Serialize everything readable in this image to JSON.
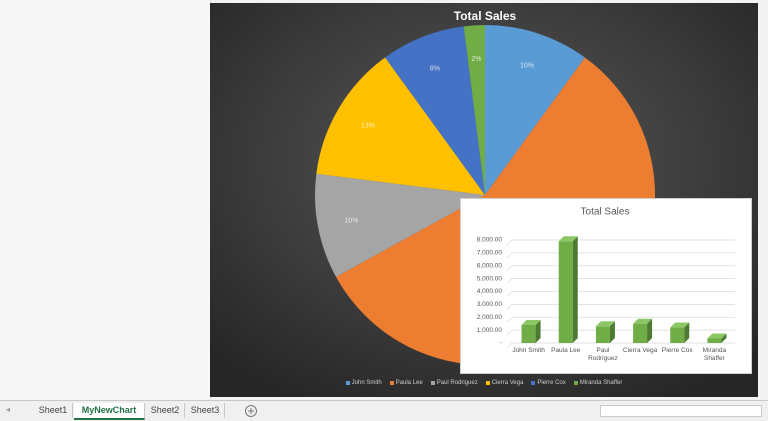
{
  "chart_data": [
    {
      "type": "pie",
      "title": "Total Sales",
      "categories": [
        "John Smith",
        "Paula Lee",
        "Paul Rodriguez",
        "Cierra Vega",
        "Pierre Cox",
        "Miranda Shaffer"
      ],
      "values": [
        10,
        57,
        10,
        13,
        8,
        2
      ],
      "value_labels": [
        "10%",
        null,
        "10%",
        "13%",
        "8%",
        "2%"
      ],
      "colors": [
        "#5b9bd5",
        "#ed7d31",
        "#a5a5a5",
        "#ffc000",
        "#4472c4",
        "#70ad47"
      ],
      "legend": "bottom"
    },
    {
      "type": "bar",
      "title": "Total Sales",
      "categories": [
        "John Smith",
        "Paula Lee",
        "Paul Rodriguez",
        "Cierra Vega",
        "Pierre Cox",
        "Miranda Shaffer"
      ],
      "values": [
        1400,
        7900,
        1300,
        1500,
        1200,
        350
      ],
      "color": "#70ad47",
      "ylim": [
        0,
        8000
      ],
      "yticks": [
        {
          "value": 0,
          "label": "-"
        },
        {
          "value": 1000,
          "label": "1,000.00"
        },
        {
          "value": 2000,
          "label": "2,000.00"
        },
        {
          "value": 3000,
          "label": "3,000.00"
        },
        {
          "value": 4000,
          "label": "4,000.00"
        },
        {
          "value": 5000,
          "label": "5,000.00"
        },
        {
          "value": 6000,
          "label": "6,000.00"
        },
        {
          "value": 7000,
          "label": "7,000.00"
        },
        {
          "value": 8000,
          "label": "8,000.00"
        }
      ],
      "grid": true
    }
  ],
  "window": {
    "sheet_tabs": [
      "Sheet1",
      "MyNewChart",
      "Sheet2",
      "Sheet3"
    ],
    "active_tab": 1
  }
}
